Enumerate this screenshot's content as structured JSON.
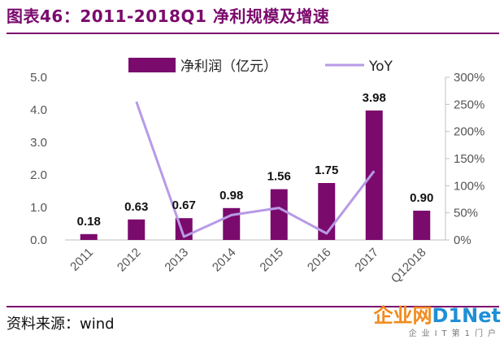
{
  "header": {
    "title": "图表46：2011-2018Q1 净利规模及增速"
  },
  "footer": {
    "source": "资料来源：wind"
  },
  "watermark": {
    "logo_a": "企业网",
    "logo_b": "D1Net",
    "sub": "企业IT第1门户"
  },
  "colors": {
    "bar": "#7b0a6d",
    "line": "#b79ae6",
    "rule": "#7b0a6d",
    "axis": "#bfbfbf"
  },
  "chart_data": {
    "type": "bar",
    "categories": [
      "2011",
      "2012",
      "2013",
      "2014",
      "2015",
      "2016",
      "2017",
      "Q12018"
    ],
    "series": [
      {
        "name": "净利润（亿元）",
        "type": "bar",
        "axis": "left",
        "values": [
          0.18,
          0.63,
          0.67,
          0.98,
          1.56,
          1.75,
          3.98,
          0.9
        ],
        "labels": [
          "0.18",
          "0.63",
          "0.67",
          "0.98",
          "1.56",
          "1.75",
          "3.98",
          "0.90"
        ]
      },
      {
        "name": "YoY",
        "type": "line",
        "axis": "right",
        "values": [
          null,
          255,
          6,
          46,
          59,
          12,
          127,
          null
        ]
      }
    ],
    "left_axis": {
      "ylim": [
        0,
        5
      ],
      "ticks": [
        "0.0",
        "1.0",
        "2.0",
        "3.0",
        "4.0",
        "5.0"
      ]
    },
    "right_axis": {
      "ylim": [
        0,
        300
      ],
      "ticks": [
        "0%",
        "50%",
        "100%",
        "150%",
        "200%",
        "250%",
        "300%"
      ]
    },
    "legend": {
      "position": "top"
    },
    "grid": false
  }
}
